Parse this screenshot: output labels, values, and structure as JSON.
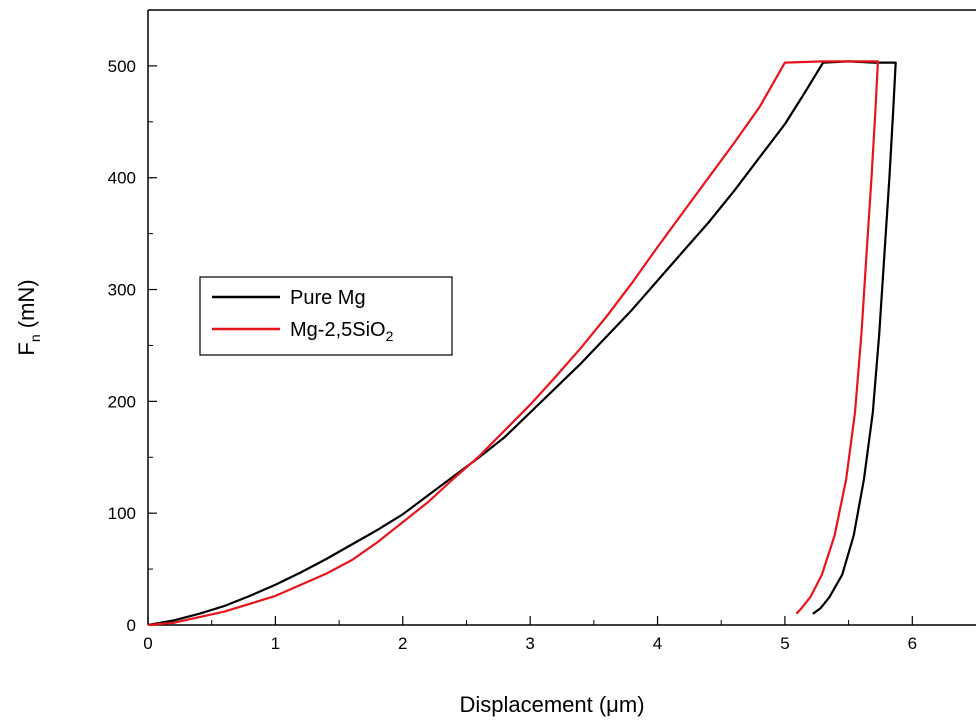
{
  "chart_data": {
    "type": "line",
    "xlabel": "Displacement (μm)",
    "ylabel": "F",
    "ylabel_sub": "n",
    "ylabel_unit": " (mN)",
    "xlim": [
      0,
      6.5
    ],
    "ylim": [
      0,
      550
    ],
    "x_ticks": [
      0,
      1,
      2,
      3,
      4,
      5,
      6
    ],
    "y_ticks": [
      0,
      100,
      200,
      300,
      400,
      500
    ],
    "grid": false,
    "legend_position": "middle-left",
    "series": [
      {
        "name": "Pure Mg",
        "name_main": "Pure Mg",
        "name_sub": "",
        "color": "#000000",
        "points": [
          [
            0,
            0
          ],
          [
            0.2,
            4
          ],
          [
            0.4,
            10
          ],
          [
            0.6,
            17
          ],
          [
            0.8,
            26
          ],
          [
            1.0,
            36
          ],
          [
            1.2,
            47
          ],
          [
            1.4,
            59
          ],
          [
            1.6,
            72
          ],
          [
            1.8,
            85
          ],
          [
            2.0,
            99
          ],
          [
            2.2,
            116
          ],
          [
            2.4,
            133
          ],
          [
            2.6,
            150
          ],
          [
            2.8,
            168
          ],
          [
            3.0,
            190
          ],
          [
            3.2,
            212
          ],
          [
            3.4,
            234
          ],
          [
            3.6,
            258
          ],
          [
            3.8,
            282
          ],
          [
            4.0,
            308
          ],
          [
            4.2,
            334
          ],
          [
            4.4,
            360
          ],
          [
            4.6,
            388
          ],
          [
            4.8,
            418
          ],
          [
            5.0,
            448
          ],
          [
            5.15,
            475
          ],
          [
            5.3,
            503
          ],
          [
            5.5,
            504
          ],
          [
            5.7,
            503
          ],
          [
            5.87,
            503
          ],
          [
            5.85,
            460
          ],
          [
            5.82,
            400
          ],
          [
            5.78,
            330
          ],
          [
            5.74,
            260
          ],
          [
            5.69,
            190
          ],
          [
            5.62,
            130
          ],
          [
            5.54,
            80
          ],
          [
            5.45,
            45
          ],
          [
            5.35,
            25
          ],
          [
            5.28,
            15
          ],
          [
            5.22,
            10
          ]
        ]
      },
      {
        "name": "Mg-2,5SiO2",
        "name_main": "Mg-2,5SiO",
        "name_sub": "2",
        "color": "#e8141b",
        "points": [
          [
            0,
            0
          ],
          [
            0.2,
            2
          ],
          [
            0.4,
            7
          ],
          [
            0.6,
            12
          ],
          [
            0.8,
            19
          ],
          [
            1.0,
            26
          ],
          [
            1.2,
            36
          ],
          [
            1.4,
            46
          ],
          [
            1.6,
            58
          ],
          [
            1.8,
            74
          ],
          [
            2.0,
            92
          ],
          [
            2.2,
            110
          ],
          [
            2.4,
            131
          ],
          [
            2.6,
            151
          ],
          [
            2.8,
            174
          ],
          [
            3.0,
            197
          ],
          [
            3.2,
            222
          ],
          [
            3.4,
            248
          ],
          [
            3.6,
            276
          ],
          [
            3.8,
            306
          ],
          [
            4.0,
            338
          ],
          [
            4.2,
            369
          ],
          [
            4.4,
            400
          ],
          [
            4.6,
            431
          ],
          [
            4.8,
            463
          ],
          [
            5.0,
            503
          ],
          [
            5.3,
            504
          ],
          [
            5.5,
            504
          ],
          [
            5.73,
            504
          ],
          [
            5.71,
            460
          ],
          [
            5.68,
            400
          ],
          [
            5.64,
            330
          ],
          [
            5.6,
            260
          ],
          [
            5.55,
            190
          ],
          [
            5.48,
            130
          ],
          [
            5.39,
            80
          ],
          [
            5.29,
            45
          ],
          [
            5.2,
            25
          ],
          [
            5.13,
            15
          ],
          [
            5.09,
            10
          ]
        ]
      }
    ]
  }
}
